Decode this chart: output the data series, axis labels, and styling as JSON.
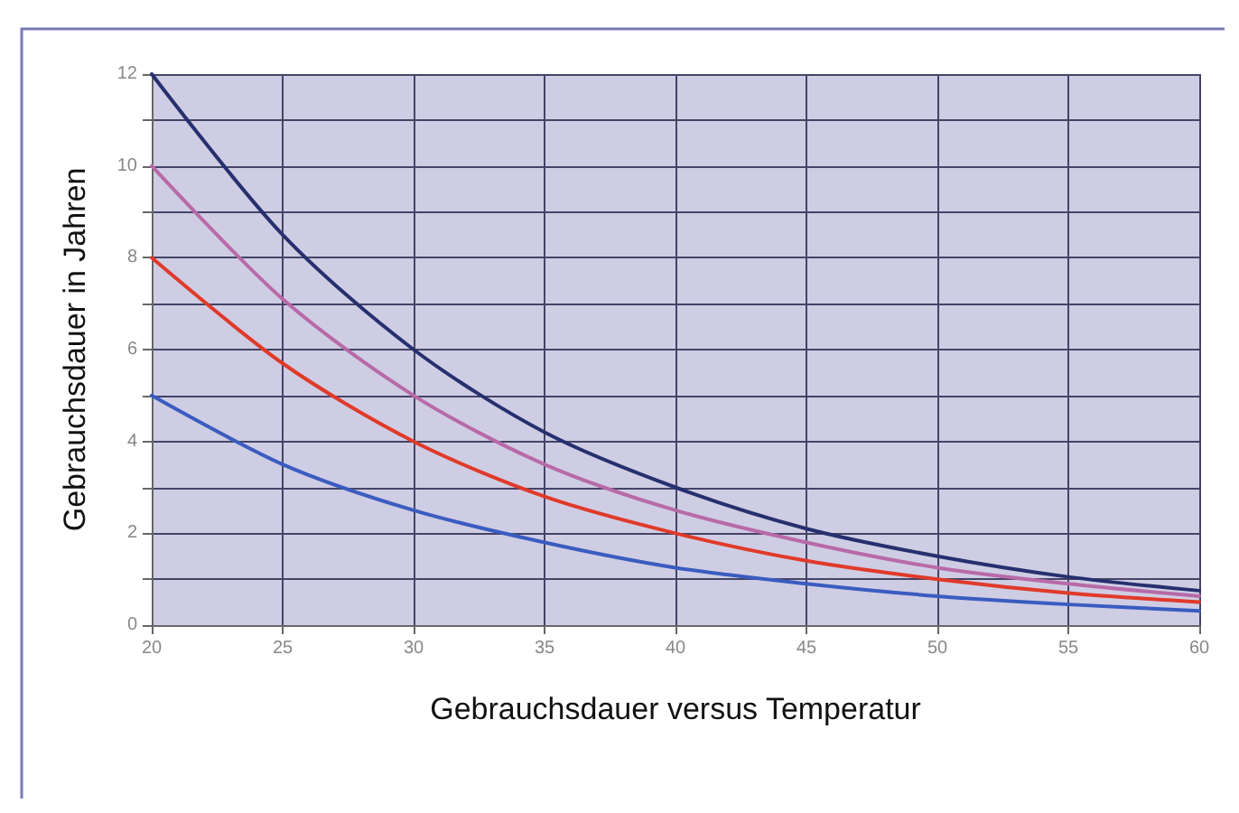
{
  "chart_data": {
    "type": "line",
    "xlabel": "Gebrauchsdauer versus Temperatur",
    "ylabel": "Gebrauchsdauer in Jahren",
    "x": [
      20,
      25,
      30,
      35,
      40,
      45,
      50,
      55,
      60
    ],
    "series": [
      {
        "color": "#26306e",
        "values": [
          12,
          8.5,
          6,
          4.2,
          3,
          2.1,
          1.5,
          1.05,
          0.75
        ]
      },
      {
        "color": "#b86aa8",
        "values": [
          10,
          7.1,
          5,
          3.5,
          2.5,
          1.8,
          1.25,
          0.9,
          0.63
        ]
      },
      {
        "color": "#e03a2a",
        "values": [
          8,
          5.7,
          4,
          2.8,
          2,
          1.4,
          1,
          0.7,
          0.5
        ]
      },
      {
        "color": "#3a5cc0",
        "values": [
          5,
          3.5,
          2.5,
          1.8,
          1.25,
          0.9,
          0.63,
          0.45,
          0.31
        ]
      }
    ],
    "xlim": [
      20,
      60
    ],
    "xticks": [
      20,
      25,
      30,
      35,
      40,
      45,
      50,
      55,
      60
    ],
    "ylim": [
      0,
      12
    ],
    "yticks": [
      0,
      {
        "value": 1,
        "label": null
      },
      2,
      {
        "value": 3,
        "label": null
      },
      4,
      {
        "value": 5,
        "label": null
      },
      6,
      {
        "value": 7,
        "label": null
      },
      8,
      {
        "value": 9,
        "label": null
      },
      10,
      {
        "value": 11,
        "label": null
      },
      12
    ],
    "grid": true,
    "marker": "none",
    "line_style": "solid"
  }
}
